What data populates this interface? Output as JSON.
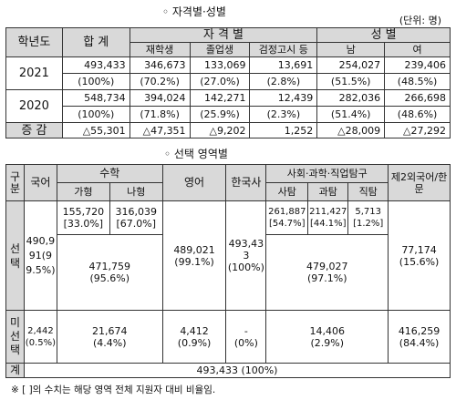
{
  "t1": {
    "title": "◦ 자격별·성별",
    "unit": "(단위: 명)",
    "head": {
      "year": "학년도",
      "total": "합  계",
      "qual": "자  격  별",
      "gender": "성  별",
      "enrolled": "재학생",
      "graduate": "졸업생",
      "ged": "검정고시 등",
      "male": "남",
      "female": "여"
    },
    "rows": [
      {
        "year": "2021",
        "v": [
          "493,433",
          "346,673",
          "133,069",
          "13,691",
          "254,027",
          "239,406"
        ],
        "p": [
          "(100%)",
          "(70.2%)",
          "(27.0%)",
          "(2.8%)",
          "(51.5%)",
          "(48.5%)"
        ]
      },
      {
        "year": "2020",
        "v": [
          "548,734",
          "394,024",
          "142,271",
          "12,439",
          "282,036",
          "266,698"
        ],
        "p": [
          "(100%)",
          "(71.8%)",
          "(25.9%)",
          "(2.3%)",
          "(51.4%)",
          "(48.6%)"
        ]
      }
    ],
    "diff": {
      "label": "증  감",
      "v": [
        "△55,301",
        "△47,351",
        "△9,202",
        "1,252",
        "△28,009",
        "△27,292"
      ]
    }
  },
  "t2": {
    "title": "◦ 선택 영역별",
    "head": {
      "cat": "구분",
      "korean": "국어",
      "math": "수학",
      "math_a": "가형",
      "math_b": "나형",
      "english": "영어",
      "history": "한국사",
      "explore": "사회·과학·직업탐구",
      "social": "사탐",
      "science": "과탐",
      "job": "직탐",
      "lang": "제2외국어/한문"
    },
    "sel": {
      "label": "선택",
      "korean": "490,991(99.5%)",
      "math_a": "155,720",
      "math_a_pct": "[33.0%]",
      "math_b": "316,039",
      "math_b_pct": "[67.0%]",
      "math_total": "471,759",
      "math_total_pct": "(95.6%)",
      "english": "489,021",
      "english_pct": "(99.1%)",
      "history": "493,433",
      "history_pct": "(100%)",
      "social": "261,887",
      "social_pct": "[54.7%]",
      "science": "211,427",
      "science_pct": "[44.1%]",
      "job": "5,713",
      "job_pct": "[1.2%]",
      "explore_total": "479,027",
      "explore_total_pct": "(97.1%)",
      "lang": "77,174",
      "lang_pct": "(15.6%)"
    },
    "unsel": {
      "label": "미선택",
      "korean": "2,442",
      "korean_pct": "(0.5%)",
      "math": "21,674",
      "math_pct": "(4.4%)",
      "english": "4,412",
      "english_pct": "(0.9%)",
      "history": "-",
      "history_pct": "(0%)",
      "explore": "14,406",
      "explore_pct": "(2.9%)",
      "lang": "416,259",
      "lang_pct": "(84.4%)"
    },
    "total": {
      "label": "계",
      "value": "493,433 (100%)"
    },
    "note": "※ [ ]의 수치는 해당 영역 전체 지원자 대비 비율임."
  }
}
